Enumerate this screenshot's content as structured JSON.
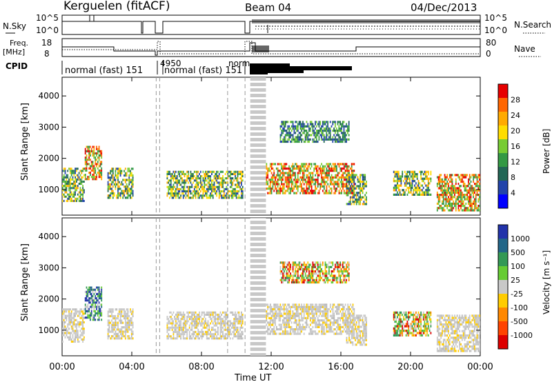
{
  "header": {
    "station": "Kerguelen (fitACF)",
    "beam": "Beam 04",
    "date": "04/Dec/2013"
  },
  "panels": {
    "nsky": {
      "label": "N.Sky",
      "right_label": "N.Search",
      "left_ticks": [
        "10^5",
        "10^0"
      ],
      "right_ticks": [
        "10^5",
        "10^0"
      ]
    },
    "freq": {
      "label_line1": "Freq.",
      "label_line2": "[MHz]",
      "right_label": "Nave",
      "left_ticks": [
        "18",
        "8"
      ],
      "right_ticks": [
        "80",
        "0"
      ]
    },
    "cpid": {
      "label": "CPID",
      "modes": [
        "normal (fast) 151",
        "4950",
        "normal (fast) 151",
        "norm"
      ]
    }
  },
  "chart_data": [
    {
      "type": "heatmap",
      "title": "",
      "ylabel": "Slant Range [km]",
      "xlabel": "Time UT",
      "x_ticks": [
        "00:00",
        "04:00",
        "08:00",
        "12:00",
        "16:00",
        "20:00",
        "00:00"
      ],
      "y_ticks": [
        1000,
        2000,
        3000,
        4000
      ],
      "xlim": [
        0,
        24
      ],
      "ylim": [
        180,
        4600
      ],
      "colorbar": {
        "label": "Power [dB]",
        "ticks": [
          "28",
          "24",
          "20",
          "16",
          "12",
          "8",
          "4"
        ],
        "colors": [
          "#e60000",
          "#ff6600",
          "#ffaa00",
          "#ffdd00",
          "#77cc33",
          "#339944",
          "#226655",
          "#2244aa",
          "#0000ff"
        ]
      },
      "echo_regions": [
        {
          "t0": 0.0,
          "t1": 1.3,
          "r0": 600,
          "r1": 1700,
          "level": "mid"
        },
        {
          "t0": 1.3,
          "t1": 2.3,
          "r0": 1300,
          "r1": 2400,
          "level": "high"
        },
        {
          "t0": 2.6,
          "t1": 4.1,
          "r0": 700,
          "r1": 1700,
          "level": "mid"
        },
        {
          "t0": 6.0,
          "t1": 10.4,
          "r0": 700,
          "r1": 1600,
          "level": "mid"
        },
        {
          "t0": 11.7,
          "t1": 16.8,
          "r0": 850,
          "r1": 1850,
          "level": "high"
        },
        {
          "t0": 12.5,
          "t1": 16.5,
          "r0": 2500,
          "r1": 3200,
          "level": "low"
        },
        {
          "t0": 16.3,
          "t1": 17.5,
          "r0": 500,
          "r1": 1500,
          "level": "mid"
        },
        {
          "t0": 19.0,
          "t1": 21.2,
          "r0": 800,
          "r1": 1600,
          "level": "mid"
        },
        {
          "t0": 21.5,
          "t1": 24.0,
          "r0": 300,
          "r1": 1500,
          "level": "high"
        }
      ]
    },
    {
      "type": "heatmap",
      "title": "",
      "ylabel": "Slant Range [km]",
      "xlabel": "Time UT",
      "x_ticks": [
        "00:00",
        "04:00",
        "08:00",
        "12:00",
        "16:00",
        "20:00",
        "00:00"
      ],
      "y_ticks": [
        1000,
        2000,
        3000,
        4000
      ],
      "xlim": [
        0,
        24
      ],
      "ylim": [
        180,
        4600
      ],
      "colorbar": {
        "label": "Velocity [m s⁻¹]",
        "ticks": [
          "1000",
          "500",
          "100",
          "25",
          "-25",
          "-100",
          "-500",
          "-1000"
        ],
        "colors": [
          "#2233aa",
          "#226688",
          "#339955",
          "#66cc33",
          "#c8c8c8",
          "#ffcc00",
          "#ff8800",
          "#ff4400",
          "#dd0000"
        ]
      },
      "echo_regions": [
        {
          "t0": 0.0,
          "t1": 1.3,
          "r0": 600,
          "r1": 1700,
          "level": "ground"
        },
        {
          "t0": 1.3,
          "t1": 2.3,
          "r0": 1300,
          "r1": 2400,
          "level": "pos"
        },
        {
          "t0": 2.6,
          "t1": 4.1,
          "r0": 700,
          "r1": 1700,
          "level": "ground"
        },
        {
          "t0": 6.0,
          "t1": 10.4,
          "r0": 700,
          "r1": 1600,
          "level": "ground"
        },
        {
          "t0": 11.7,
          "t1": 16.8,
          "r0": 850,
          "r1": 1850,
          "level": "ground"
        },
        {
          "t0": 12.5,
          "t1": 16.5,
          "r0": 2500,
          "r1": 3200,
          "level": "mixed"
        },
        {
          "t0": 16.3,
          "t1": 17.5,
          "r0": 500,
          "r1": 1500,
          "level": "ground"
        },
        {
          "t0": 19.0,
          "t1": 21.2,
          "r0": 800,
          "r1": 1600,
          "level": "mixed"
        },
        {
          "t0": 21.5,
          "t1": 24.0,
          "r0": 300,
          "r1": 1500,
          "level": "ground"
        }
      ]
    }
  ],
  "axis": {
    "xlabel": "Time UT"
  }
}
